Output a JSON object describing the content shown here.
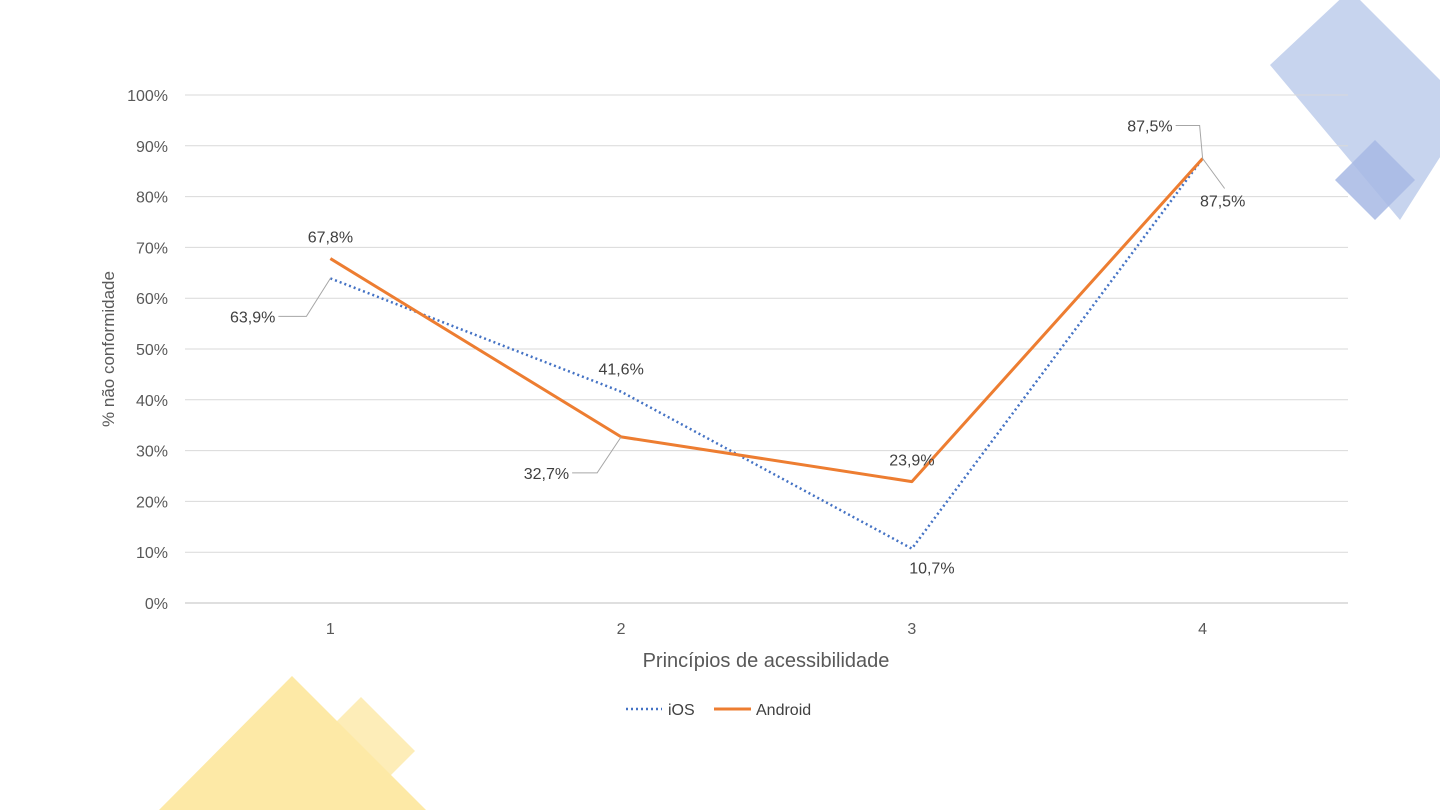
{
  "decor_colors": {
    "blue_large": "#c7d4ee",
    "blue_small": "#a7b9e4",
    "yellow_large": "#fde9a6",
    "yellow_small": "#fde9a6"
  },
  "chart_data": {
    "type": "line",
    "title": "",
    "xlabel": "Princípios de acessibilidade",
    "ylabel": "% não conformidade",
    "categories": [
      "1",
      "2",
      "3",
      "4"
    ],
    "ylim": [
      0,
      100
    ],
    "yticks": [
      "0%",
      "10%",
      "20%",
      "30%",
      "40%",
      "50%",
      "60%",
      "70%",
      "80%",
      "90%",
      "100%"
    ],
    "grid": true,
    "legend_position": "bottom",
    "series": [
      {
        "name": "iOS",
        "values": [
          63.9,
          41.6,
          10.7,
          87.5
        ],
        "labels": [
          "63,9%",
          "41,6%",
          "10,7%",
          "87,5%"
        ],
        "color": "#4472c4",
        "style": "dotted"
      },
      {
        "name": "Android",
        "values": [
          67.8,
          32.7,
          23.9,
          87.5
        ],
        "labels": [
          "67,8%",
          "32,7%",
          "23,9%",
          "87,5%"
        ],
        "color": "#ed7d31",
        "style": "solid"
      }
    ]
  }
}
